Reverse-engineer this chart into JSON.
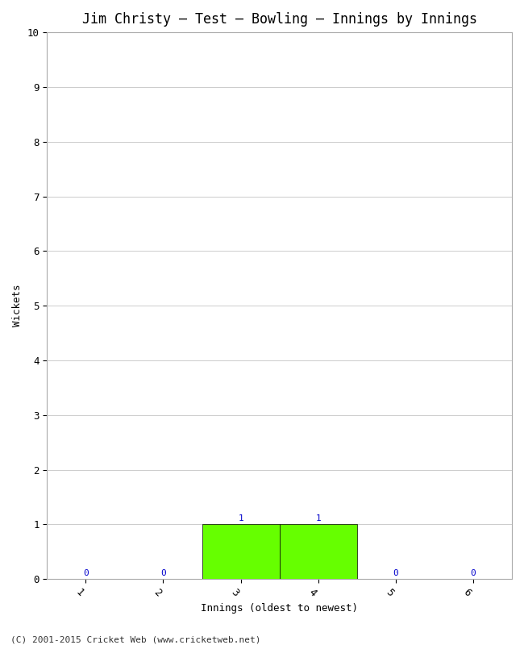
{
  "title": "Jim Christy – Test – Bowling – Innings by Innings",
  "xlabel": "Innings (oldest to newest)",
  "ylabel": "Wickets",
  "categories": [
    1,
    2,
    3,
    4,
    5,
    6
  ],
  "values": [
    0,
    0,
    1,
    1,
    0,
    0
  ],
  "bar_color": "#66ff00",
  "bar_edge_color": "#000000",
  "ylim": [
    0,
    10
  ],
  "yticks": [
    0,
    1,
    2,
    3,
    4,
    5,
    6,
    7,
    8,
    9,
    10
  ],
  "xticks": [
    1,
    2,
    3,
    4,
    5,
    6
  ],
  "label_color": "#0000cc",
  "background_color": "#ffffff",
  "grid_color": "#cccccc",
  "title_fontsize": 12,
  "axis_label_fontsize": 9,
  "tick_fontsize": 9,
  "annotation_fontsize": 8,
  "footer": "(C) 2001-2015 Cricket Web (www.cricketweb.net)",
  "figwidth": 6.5,
  "figheight": 8.0,
  "dpi": 100
}
